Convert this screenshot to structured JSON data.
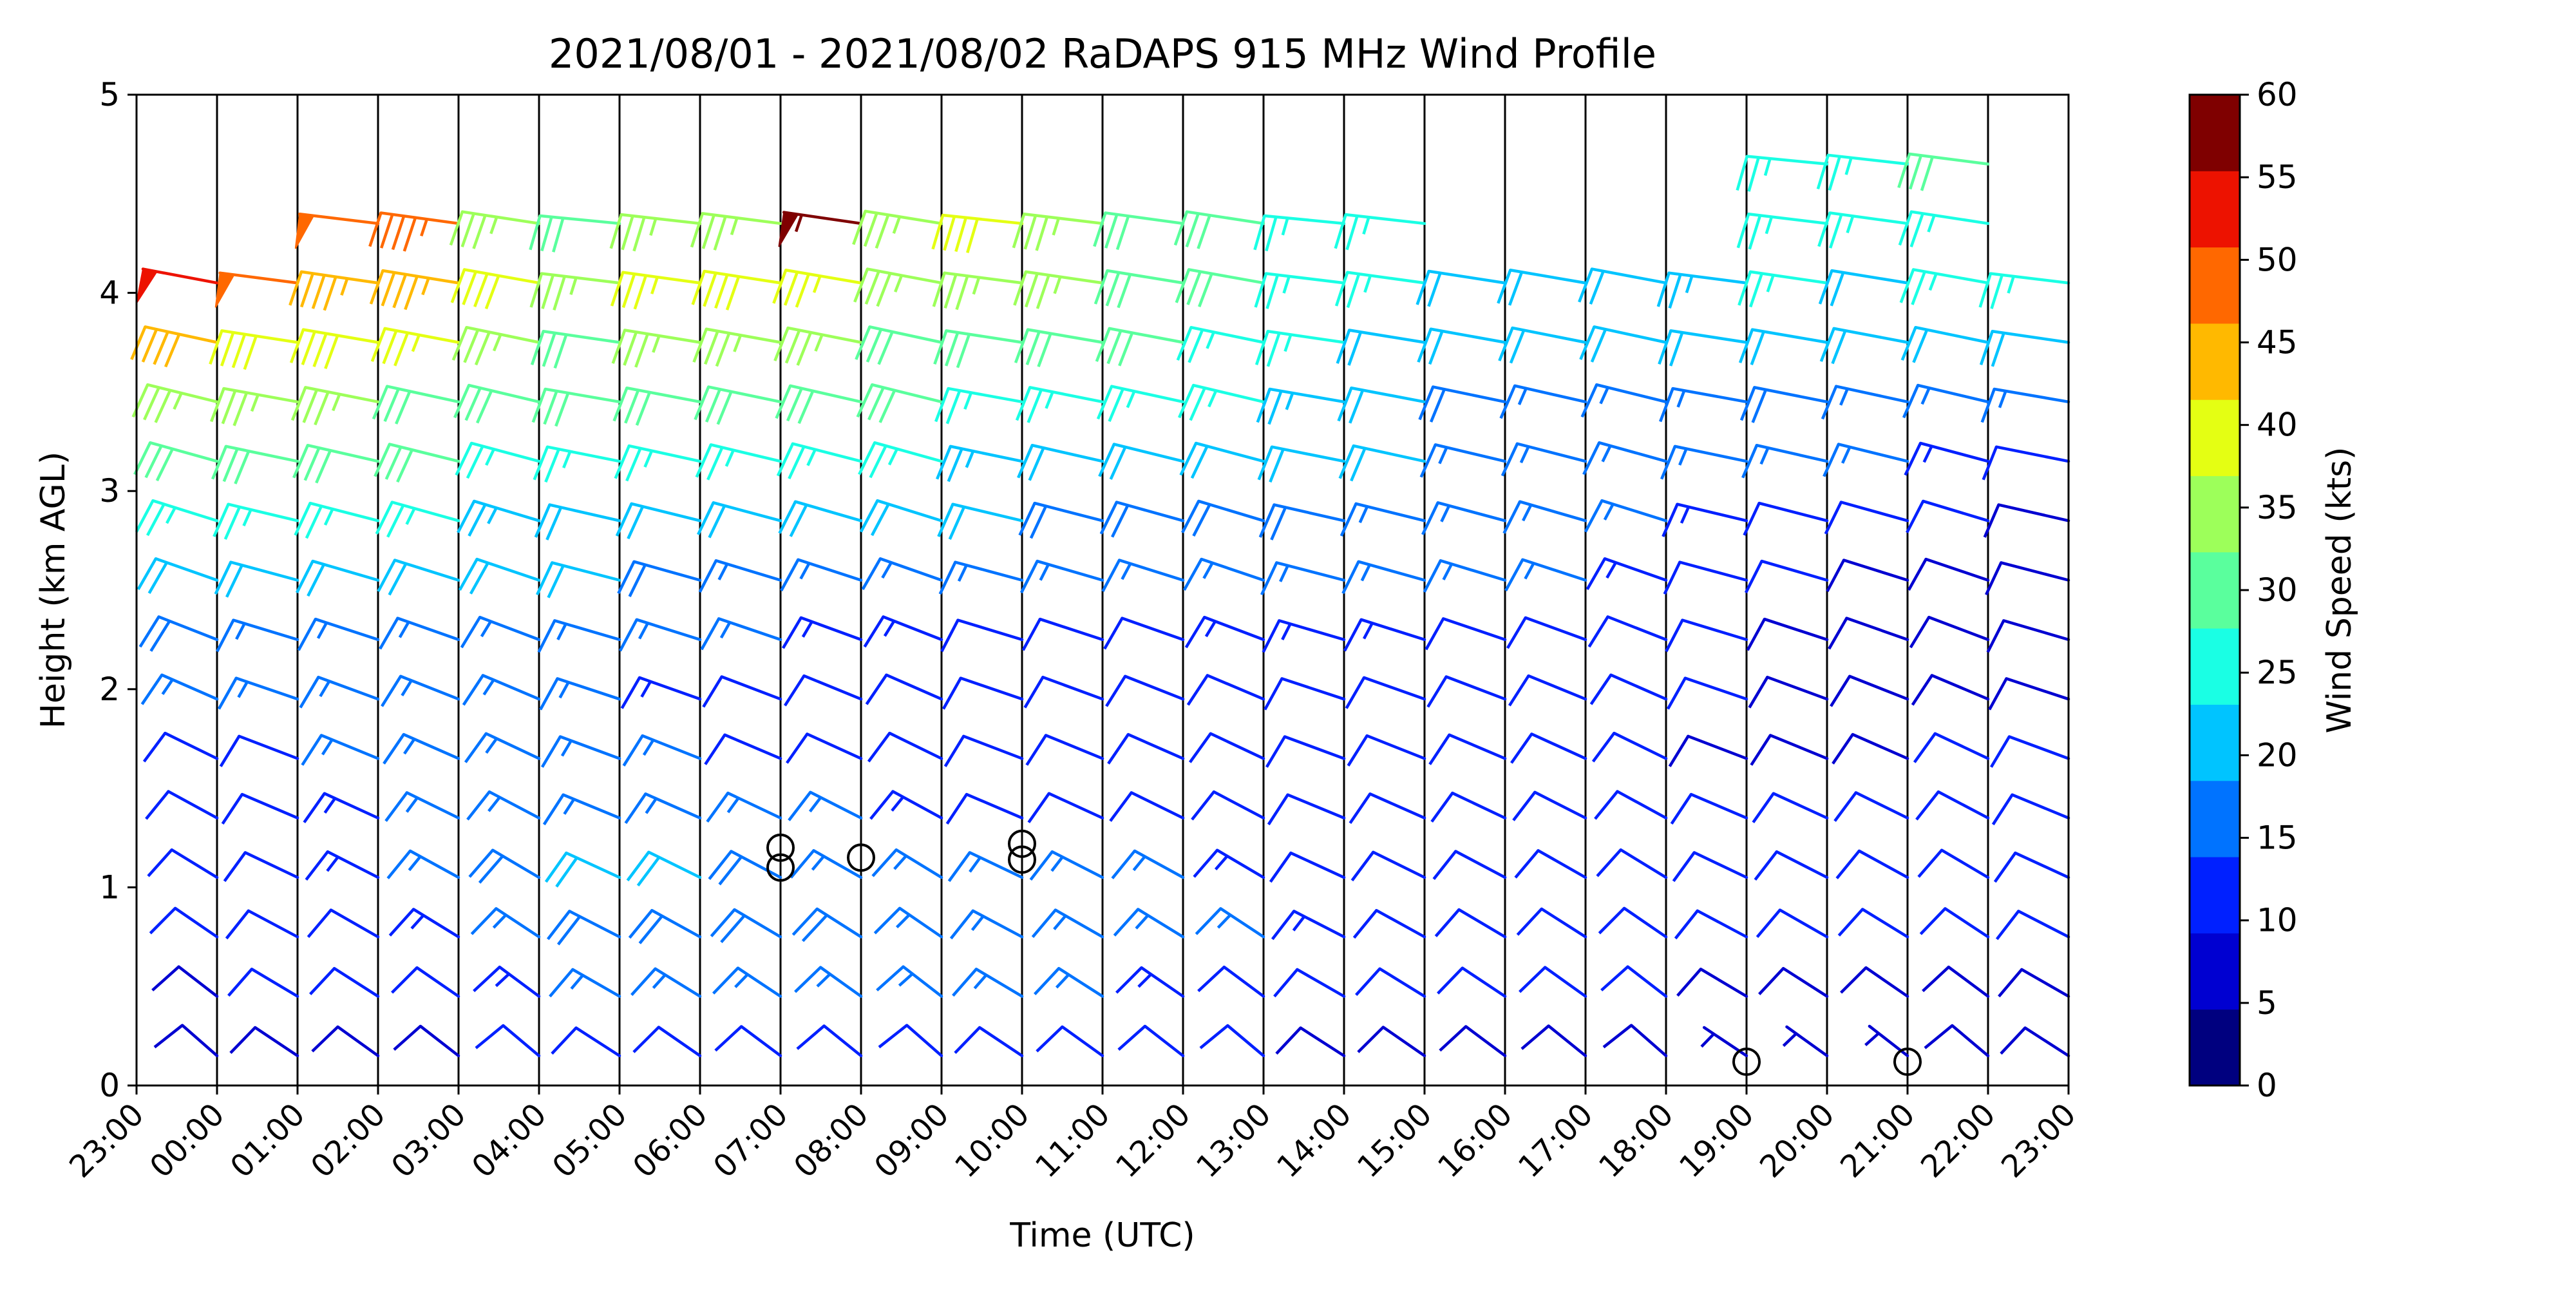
{
  "chart_data": {
    "type": "wind_barb_profile",
    "title": "2021/08/01 - 2021/08/02 RaDAPS 915 MHz Wind Profile",
    "xlabel": "Time (UTC)",
    "ylabel": "Height (km AGL)",
    "ylim": [
      0,
      5
    ],
    "y_ticks": [
      "0",
      "1",
      "2",
      "3",
      "4",
      "5"
    ],
    "x_ticks": [
      "23:00",
      "00:00",
      "01:00",
      "02:00",
      "03:00",
      "04:00",
      "05:00",
      "06:00",
      "07:00",
      "08:00",
      "09:00",
      "10:00",
      "11:00",
      "12:00",
      "13:00",
      "14:00",
      "15:00",
      "16:00",
      "17:00",
      "18:00",
      "19:00",
      "20:00",
      "21:00",
      "22:00",
      "23:00"
    ],
    "grid": "vertical lines at each hour",
    "profile_levels_km": [
      0.15,
      0.45,
      0.75,
      1.05,
      1.35,
      1.65,
      1.95,
      2.25,
      2.55,
      2.85,
      3.15,
      3.45,
      3.75,
      4.05,
      4.35,
      4.65
    ],
    "wind_speed_kts_by_hour": [
      [
        8,
        9,
        10,
        10,
        11,
        12,
        14,
        18,
        22,
        26,
        30,
        34,
        42,
        52
      ],
      [
        9,
        10,
        10,
        11,
        11,
        12,
        14,
        17,
        21,
        25,
        29,
        34,
        40,
        50
      ],
      [
        9,
        10,
        12,
        13,
        13,
        14,
        15,
        17,
        21,
        25,
        29,
        34,
        40,
        46,
        48
      ],
      [
        9,
        11,
        13,
        14,
        14,
        14,
        15,
        17,
        20,
        24,
        28,
        32,
        37,
        43,
        47
      ],
      [
        10,
        13,
        17,
        18,
        17,
        15,
        15,
        17,
        20,
        23,
        27,
        30,
        34,
        38,
        33
      ],
      [
        11,
        14,
        18,
        19,
        17,
        15,
        14,
        16,
        19,
        22,
        26,
        29,
        32,
        35,
        32
      ],
      [
        11,
        14,
        18,
        19,
        16,
        14,
        13,
        15,
        18,
        21,
        25,
        28,
        33,
        37,
        34
      ],
      [
        12,
        15,
        18,
        18,
        15,
        12,
        12,
        14,
        17,
        21,
        25,
        29,
        34,
        38,
        34
      ],
      [
        12,
        15,
        18,
        17,
        14,
        11,
        11,
        13,
        17,
        20,
        24,
        28,
        33,
        37,
        56
      ],
      [
        12,
        15,
        17,
        16,
        13,
        10,
        10,
        13,
        16,
        20,
        24,
        28,
        32,
        36,
        36
      ],
      [
        11,
        14,
        16,
        15,
        12,
        10,
        10,
        12,
        15,
        19,
        23,
        27,
        31,
        35,
        38
      ],
      [
        11,
        14,
        16,
        14,
        12,
        10,
        10,
        12,
        15,
        18,
        22,
        26,
        30,
        33,
        36
      ],
      [
        10,
        13,
        15,
        14,
        11,
        10,
        11,
        12,
        15,
        18,
        21,
        25,
        28,
        30,
        32
      ],
      [
        10,
        12,
        14,
        13,
        11,
        10,
        11,
        13,
        15,
        18,
        21,
        24,
        26,
        28,
        28
      ],
      [
        9,
        12,
        13,
        12,
        11,
        10,
        11,
        13,
        15,
        18,
        20,
        23,
        24,
        25,
        25
      ],
      [
        9,
        11,
        12,
        12,
        11,
        10,
        11,
        13,
        15,
        17,
        19,
        21,
        22,
        24,
        26
      ],
      [
        8,
        10,
        11,
        11,
        10,
        10,
        11,
        12,
        14,
        16,
        17,
        18,
        19,
        19
      ],
      [
        8,
        10,
        11,
        11,
        10,
        10,
        11,
        12,
        14,
        15,
        16,
        17,
        19,
        21
      ],
      [
        8,
        10,
        10,
        11,
        10,
        10,
        10,
        11,
        13,
        14,
        15,
        17,
        19,
        22
      ],
      [
        7,
        9,
        10,
        10,
        10,
        9,
        10,
        10,
        11,
        13,
        15,
        17,
        19,
        23
      ],
      [
        7,
        9,
        10,
        10,
        10,
        9,
        9,
        9,
        10,
        12,
        15,
        18,
        21,
        24,
        24,
        25
      ],
      [
        7,
        9,
        10,
        10,
        10,
        9,
        9,
        8,
        9,
        11,
        14,
        17,
        19,
        22,
        25,
        27
      ],
      [
        8,
        9,
        10,
        10,
        10,
        10,
        9,
        8,
        9,
        10,
        13,
        16,
        20,
        24,
        26,
        29
      ],
      [
        8,
        9,
        10,
        11,
        10,
        10,
        9,
        8,
        8,
        9,
        12,
        16,
        20,
        24
      ]
    ],
    "calm_markers": [
      {
        "time": "07:00",
        "height_km": 1.2
      },
      {
        "time": "07:00",
        "height_km": 1.1
      },
      {
        "time": "08:00",
        "height_km": 1.15
      },
      {
        "time": "10:00",
        "height_km": 1.22
      },
      {
        "time": "10:00",
        "height_km": 1.14
      },
      {
        "time": "19:00",
        "height_km": 0.12
      },
      {
        "time": "21:00",
        "height_km": 0.12
      }
    ],
    "colorbar": {
      "label": "Wind Speed (kts)",
      "range": [
        0,
        60
      ],
      "ticks": [
        "0",
        "5",
        "10",
        "15",
        "20",
        "25",
        "30",
        "35",
        "40",
        "45",
        "50",
        "55",
        "60"
      ],
      "colors": [
        "#00007f",
        "#0000d1",
        "#0020ff",
        "#0073ff",
        "#00c4ff",
        "#1affe4",
        "#5aff9d",
        "#9dff5a",
        "#e4ff13",
        "#ffb900",
        "#ff6800",
        "#ed1200",
        "#7f0000"
      ]
    }
  }
}
